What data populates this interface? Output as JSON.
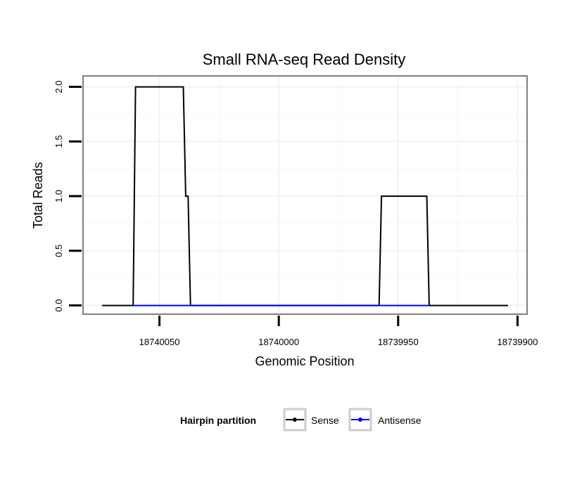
{
  "chart_data": {
    "type": "line",
    "title": "Small RNA-seq Read Density",
    "xlabel": "Genomic Position",
    "ylabel": "Total Reads",
    "x_reversed": true,
    "xlim": [
      18740082,
      18739896
    ],
    "ylim": [
      -0.08,
      2.1
    ],
    "x_ticks": [
      18740050,
      18740000,
      18739950,
      18739900
    ],
    "x_tick_labels": [
      "18740050",
      "18740000",
      "18739950",
      "18739900"
    ],
    "y_ticks": [
      0.0,
      0.5,
      1.0,
      1.5,
      2.0
    ],
    "y_tick_labels": [
      "0.0",
      "0.5",
      "1.0",
      "1.5",
      "2.0"
    ],
    "grid": true,
    "legend": {
      "title": "Hairpin partition",
      "position": "bottom",
      "entries": [
        "Sense",
        "Antisense"
      ]
    },
    "series": [
      {
        "name": "Sense",
        "color": "#000000",
        "x": [
          18740074,
          18740061,
          18740060,
          18740041,
          18740040,
          18740039,
          18740038,
          18740037,
          18739989,
          18739958,
          18739957,
          18739938,
          18739937,
          18739904
        ],
        "values": [
          0,
          0,
          2,
          2,
          2,
          1,
          1,
          0,
          0,
          0,
          1,
          1,
          0,
          0
        ]
      },
      {
        "name": "Antisense",
        "color": "#0000ff",
        "x": [
          18740061,
          18740037,
          18739958,
          18739937
        ],
        "values": [
          0,
          0,
          0,
          0
        ]
      }
    ]
  }
}
